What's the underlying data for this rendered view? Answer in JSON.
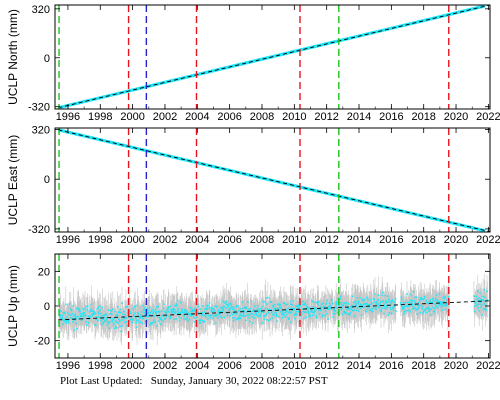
{
  "footer": {
    "label": "Plot Last Updated:",
    "timestamp": "Sunday, January 30, 2022 08:22:57 PST"
  },
  "style": {
    "data_color": "#22e6f7",
    "error_color": "#b4b4b4",
    "fit_color": "#000000",
    "red_line": "#e8141b",
    "green_line": "#1ec21e",
    "blue_line": "#2424c8"
  },
  "chart_data": [
    {
      "type": "scatter",
      "ylabel": "UCLP North (mm)",
      "xlim": [
        1995.2,
        2022.1
      ],
      "ylim": [
        -335,
        345
      ],
      "yticks": [
        -320,
        0,
        320
      ],
      "xticks": [
        1996,
        1998,
        2000,
        2002,
        2004,
        2006,
        2008,
        2010,
        2012,
        2014,
        2016,
        2018,
        2020,
        2022
      ],
      "grid": false,
      "trend": {
        "x": [
          1995.4,
          2022.1
        ],
        "y": [
          -327,
          345
        ]
      },
      "series": [
        {
          "x_start": 1995.4,
          "x_end": 2021.8,
          "y_start": -327,
          "y_end": 339
        }
      ],
      "events": [
        {
          "x": 1995.45,
          "color": "green"
        },
        {
          "x": 1999.75,
          "color": "red"
        },
        {
          "x": 2000.85,
          "color": "blue"
        },
        {
          "x": 2003.95,
          "color": "red"
        },
        {
          "x": 2010.35,
          "color": "red"
        },
        {
          "x": 2012.75,
          "color": "green"
        },
        {
          "x": 2019.55,
          "color": "red"
        }
      ]
    },
    {
      "type": "scatter",
      "ylabel": "UCLP East (mm)",
      "xlim": [
        1995.2,
        2022.1
      ],
      "ylim": [
        -340,
        330
      ],
      "yticks": [
        -320,
        0,
        320
      ],
      "xticks": [
        1996,
        1998,
        2000,
        2002,
        2004,
        2006,
        2008,
        2010,
        2012,
        2014,
        2016,
        2018,
        2020,
        2022
      ],
      "grid": false,
      "trend": {
        "x": [
          1995.4,
          2022.1
        ],
        "y": [
          318,
          -338
        ]
      },
      "series": [
        {
          "x_start": 1995.4,
          "x_end": 2021.8,
          "y_start": 318,
          "y_end": -332
        }
      ],
      "events": [
        {
          "x": 1995.45,
          "color": "green"
        },
        {
          "x": 1999.75,
          "color": "red"
        },
        {
          "x": 2000.85,
          "color": "blue"
        },
        {
          "x": 2003.95,
          "color": "red"
        },
        {
          "x": 2010.35,
          "color": "red"
        },
        {
          "x": 2012.75,
          "color": "green"
        },
        {
          "x": 2019.55,
          "color": "red"
        }
      ]
    },
    {
      "type": "scatter",
      "ylabel": "UCLP Up (mm)",
      "xlim": [
        1995.2,
        2022.1
      ],
      "ylim": [
        -30,
        30
      ],
      "yticks": [
        -20,
        0,
        20
      ],
      "xticks": [
        1996,
        1998,
        2000,
        2002,
        2004,
        2006,
        2008,
        2010,
        2012,
        2014,
        2016,
        2018,
        2020,
        2022
      ],
      "grid": false,
      "trend": {
        "x": [
          1995.4,
          2022.1
        ],
        "y": [
          -8,
          3
        ]
      },
      "series": [
        {
          "x": [
            1995.5,
            1996.5,
            1997.5,
            1998.5,
            1999.5,
            2000.5,
            2001.5,
            2002.5,
            2003.5,
            2004.5,
            2005.5,
            2006.5,
            2007.5,
            2008.5,
            2009.5,
            2010.5,
            2011.5,
            2012.5,
            2013.5,
            2014.5,
            2015.5,
            2016.5,
            2017.5,
            2018.5,
            2019.5,
            2020.5,
            2021.5
          ],
          "y": [
            -7,
            -6,
            -5,
            -7,
            -6,
            -6,
            -5,
            -4,
            -5,
            -4,
            -3,
            -3,
            -4,
            -2,
            -2,
            -3,
            -2,
            -1,
            0,
            0,
            1,
            0,
            1,
            0,
            1,
            2,
            3
          ]
        }
      ],
      "events": [
        {
          "x": 1995.45,
          "color": "green"
        },
        {
          "x": 1999.75,
          "color": "red"
        },
        {
          "x": 2000.85,
          "color": "blue"
        },
        {
          "x": 2003.95,
          "color": "red"
        },
        {
          "x": 2010.35,
          "color": "red"
        },
        {
          "x": 2012.75,
          "color": "green"
        },
        {
          "x": 2019.55,
          "color": "red"
        }
      ]
    }
  ]
}
